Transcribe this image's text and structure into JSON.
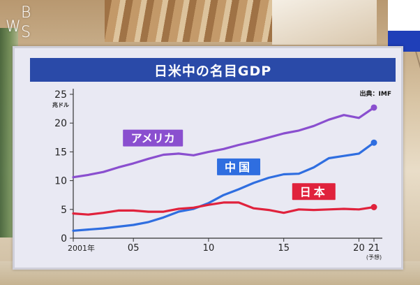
{
  "broadcast": {
    "logo_letters": [
      "W",
      "B",
      "S"
    ]
  },
  "chart_data": {
    "type": "line",
    "title": "日米中の名目GDP",
    "source": "出典：IMF",
    "ylabel": "兆ドル",
    "ylim": [
      0,
      25
    ],
    "xlim": [
      2001,
      2021
    ],
    "y_ticks": [
      0,
      5,
      10,
      15,
      20,
      25
    ],
    "x_ticks": [
      {
        "year": 2001,
        "label": "2001年"
      },
      {
        "year": 2005,
        "label": "05"
      },
      {
        "year": 2010,
        "label": "10"
      },
      {
        "year": 2015,
        "label": "15"
      },
      {
        "year": 2020,
        "label": "20"
      },
      {
        "year": 2021,
        "label": "21",
        "note": "(予想)"
      }
    ],
    "grid": false,
    "legend": "inline labels",
    "x": [
      2001,
      2002,
      2003,
      2004,
      2005,
      2006,
      2007,
      2008,
      2009,
      2010,
      2011,
      2012,
      2013,
      2014,
      2015,
      2016,
      2017,
      2018,
      2019,
      2020,
      2021
    ],
    "series": [
      {
        "name": "アメリカ",
        "color": "#8a4fcf",
        "label_bg": "#8a4fcf",
        "values": [
          10.6,
          11.0,
          11.5,
          12.3,
          13.0,
          13.8,
          14.5,
          14.7,
          14.4,
          15.0,
          15.5,
          16.2,
          16.8,
          17.5,
          18.2,
          18.7,
          19.5,
          20.6,
          21.4,
          20.9,
          22.7
        ]
      },
      {
        "name": "中国",
        "color": "#2f6ee0",
        "label_bg": "#2f6ee0",
        "values": [
          1.3,
          1.5,
          1.7,
          2.0,
          2.3,
          2.8,
          3.6,
          4.6,
          5.1,
          6.1,
          7.5,
          8.5,
          9.6,
          10.5,
          11.1,
          11.2,
          12.3,
          13.9,
          14.3,
          14.7,
          16.6
        ]
      },
      {
        "name": "日本",
        "color": "#e0223c",
        "label_bg": "#e0223c",
        "values": [
          4.3,
          4.1,
          4.4,
          4.8,
          4.8,
          4.6,
          4.6,
          5.1,
          5.3,
          5.8,
          6.2,
          6.2,
          5.2,
          4.9,
          4.4,
          5.0,
          4.9,
          5.0,
          5.1,
          5.0,
          5.4
        ]
      }
    ]
  }
}
